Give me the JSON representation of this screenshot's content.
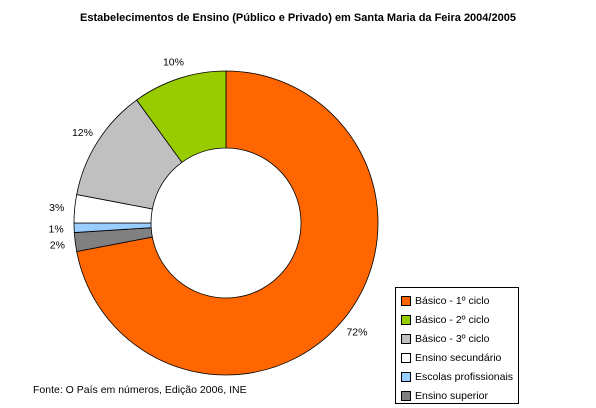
{
  "chart_data": {
    "type": "pie",
    "variant": "donut",
    "title": "Estabelecimentos de Ensino (Público e Privado) em Santa Maria da Feira 2004/2005",
    "source": "Fonte: O País em números, Edição 2006, INE",
    "legend_position": "bottom-right",
    "categories": [
      "Básico - 1º ciclo",
      "Básico - 2º ciclo",
      "Básico - 3º ciclo",
      "Ensino secundário",
      "Escolas profissionais",
      "Ensino superior"
    ],
    "values": [
      72,
      10,
      12,
      3,
      1,
      2
    ],
    "data_labels": [
      "72%",
      "10%",
      "12%",
      "3%",
      "1%",
      "2%"
    ],
    "colors": [
      "#ff6600",
      "#99cc00",
      "#c0c0c0",
      "#ffffff",
      "#99ccff",
      "#808080"
    ]
  }
}
